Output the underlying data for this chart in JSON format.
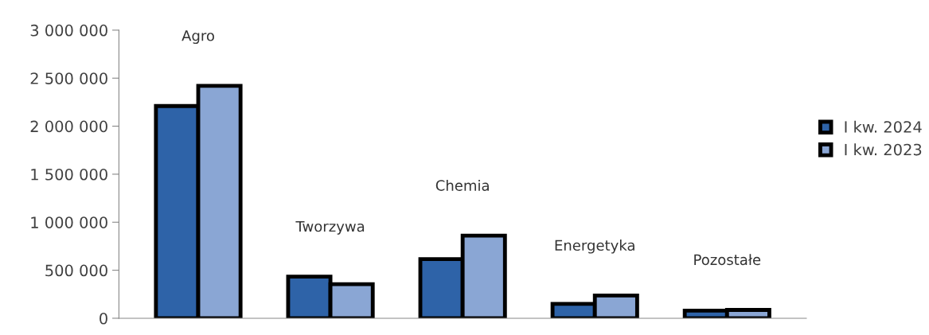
{
  "chart_data": {
    "type": "bar",
    "categories": [
      "Agro",
      "Tworzywa",
      "Chemia",
      "Energetyka",
      "Pozostałe"
    ],
    "series": [
      {
        "name": "I kw. 2024",
        "color": "#2e63a8",
        "values": [
          2210000,
          434000,
          616000,
          150000,
          79000
        ]
      },
      {
        "name": "I kw. 2023",
        "color": "#8aa6d4",
        "values": [
          2420000,
          355000,
          860000,
          237000,
          87000
        ]
      }
    ],
    "ylim": [
      0,
      3000000
    ],
    "yticks": [
      {
        "value": 0,
        "label": "0"
      },
      {
        "value": 500000,
        "label": "500 000"
      },
      {
        "value": 1000000,
        "label": "1 000 000"
      },
      {
        "value": 1500000,
        "label": "1 500 000"
      },
      {
        "value": 2000000,
        "label": "2 000 000"
      },
      {
        "value": 2500000,
        "label": "2 500 000"
      },
      {
        "value": 3000000,
        "label": "3 000 000"
      }
    ],
    "grid": false,
    "legend": "right"
  }
}
